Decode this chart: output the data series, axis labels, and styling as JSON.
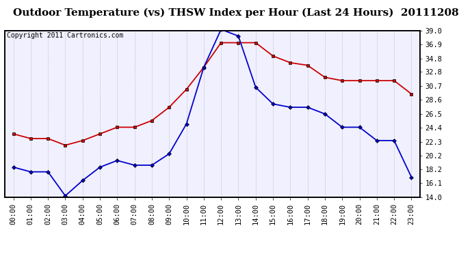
{
  "title": "Outdoor Temperature (vs) THSW Index per Hour (Last 24 Hours)  20111208",
  "copyright": "Copyright 2011 Cartronics.com",
  "hours": [
    "00:00",
    "01:00",
    "02:00",
    "03:00",
    "04:00",
    "05:00",
    "06:00",
    "07:00",
    "08:00",
    "09:00",
    "10:00",
    "11:00",
    "12:00",
    "13:00",
    "14:00",
    "15:00",
    "16:00",
    "17:00",
    "18:00",
    "19:00",
    "20:00",
    "21:00",
    "22:00",
    "23:00"
  ],
  "red_data": [
    23.5,
    22.8,
    22.8,
    21.8,
    22.5,
    23.5,
    24.5,
    24.5,
    25.5,
    27.5,
    30.2,
    33.5,
    37.2,
    37.2,
    37.2,
    35.2,
    34.2,
    33.8,
    32.0,
    31.5,
    31.5,
    31.5,
    31.5,
    29.5
  ],
  "blue_data": [
    18.5,
    17.8,
    17.8,
    14.2,
    16.5,
    18.5,
    19.5,
    18.8,
    18.8,
    20.5,
    25.0,
    33.5,
    39.2,
    38.2,
    30.5,
    28.0,
    27.5,
    27.5,
    26.5,
    24.5,
    24.5,
    22.5,
    22.5,
    17.0
  ],
  "ylim": [
    14.0,
    39.0
  ],
  "yticks_right": [
    14.0,
    16.1,
    18.2,
    20.2,
    22.3,
    24.4,
    26.5,
    28.6,
    30.7,
    32.8,
    34.8,
    36.9,
    39.0
  ],
  "red_color": "#cc0000",
  "blue_color": "#0000cc",
  "bg_color": "#ffffff",
  "plot_bg_color": "#f0f0ff",
  "grid_color": "#bbbbbb",
  "title_fontsize": 11,
  "tick_fontsize": 7.5,
  "copyright_fontsize": 7
}
